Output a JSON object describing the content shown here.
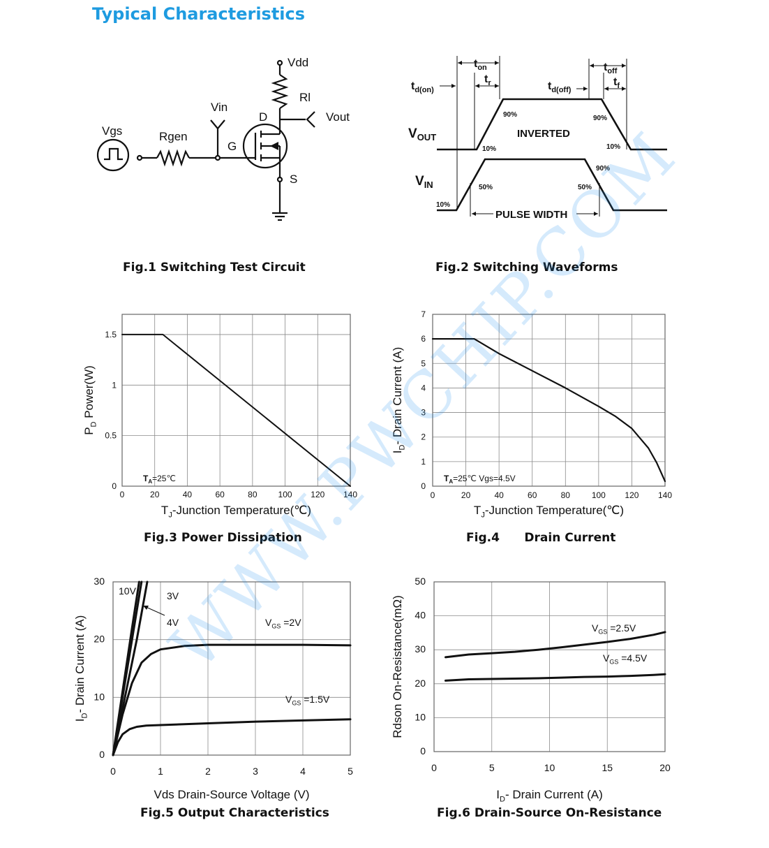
{
  "page": {
    "title": "Typical Characteristics",
    "watermark": "WWW.PWCHIP.COM"
  },
  "figures": {
    "fig1": {
      "caption": "Fig.1 Switching Test Circuit",
      "labels": {
        "vdd": "Vdd",
        "rl": "Rl",
        "vin": "Vin",
        "vout": "Vout",
        "vgs": "Vgs",
        "rgen": "Rgen",
        "d": "D",
        "g": "G",
        "s": "S"
      }
    },
    "fig2": {
      "caption": "Fig.2 Switching Waveforms",
      "labels": {
        "ton": "t",
        "ton_sub": "on",
        "tr": "t",
        "tr_sub": "r",
        "tdon": "t",
        "tdon_sub": "d(on)",
        "tdoff": "t",
        "tdoff_sub": "d(off)",
        "toff": "t",
        "toff_sub": "off",
        "tf": "t",
        "tf_sub": "f",
        "vout": "V",
        "vout_sub": "OUT",
        "vin": "V",
        "vin_sub": "IN",
        "inverted": "INVERTED",
        "pulse_width": "PULSE WIDTH",
        "p90a": "90%",
        "p90b": "90%",
        "p10a": "10%",
        "p10b": "10%",
        "p90c": "90%",
        "p50a": "50%",
        "p50b": "50%",
        "p10c": "10%"
      }
    },
    "fig3": {
      "caption": "Fig.3 Power Dissipation"
    },
    "fig4": {
      "caption": "Fig.4      Drain Current"
    },
    "fig5": {
      "caption": "Fig.5 Output Characteristics"
    },
    "fig6": {
      "caption": "Fig.6 Drain-Source On-Resistance"
    }
  },
  "chart_data": [
    {
      "type": "line",
      "x": [
        0,
        25,
        140
      ],
      "series": [
        {
          "name": "",
          "values": [
            1.5,
            1.5,
            0.0
          ]
        }
      ],
      "xlabel": "TJ-Junction Temperature(℃)",
      "ylabel": "PD  Power(W)",
      "x_ticks": [
        "0",
        "20",
        "40",
        "60",
        "80",
        "100",
        "120",
        "140"
      ],
      "y_ticks": [
        "0",
        "0.5",
        "1",
        "1.5"
      ],
      "xlim": [
        0,
        140
      ],
      "ylim": [
        0,
        1.7
      ],
      "grid": true,
      "annotation": "TA=25℃"
    },
    {
      "type": "line",
      "x": [
        0,
        25,
        40,
        60,
        80,
        100,
        110,
        120,
        130,
        135,
        140
      ],
      "series": [
        {
          "name": "",
          "values": [
            6.0,
            6.0,
            5.4,
            4.7,
            4.0,
            3.25,
            2.85,
            2.35,
            1.55,
            0.95,
            0.2
          ]
        }
      ],
      "xlabel": "TJ-Junction Temperature(℃)",
      "ylabel": "ID- Drain Current (A)",
      "x_ticks": [
        "0",
        "20",
        "40",
        "60",
        "80",
        "100",
        "120",
        "140"
      ],
      "y_ticks": [
        "0",
        "1",
        "2",
        "3",
        "4",
        "5",
        "6",
        "7"
      ],
      "xlim": [
        0,
        140
      ],
      "ylim": [
        0,
        7
      ],
      "grid": true,
      "annotation": "TA=25℃  Vgs=4.5V"
    },
    {
      "type": "line",
      "xlabel": "Vds Drain-Source Voltage (V)",
      "ylabel": "ID- Drain Current (A)",
      "x_ticks": [
        "0",
        "1",
        "2",
        "3",
        "4",
        "5"
      ],
      "y_ticks": [
        "0",
        "10",
        "20",
        "30"
      ],
      "xlim": [
        0,
        5
      ],
      "ylim": [
        0,
        30
      ],
      "grid": true,
      "series": [
        {
          "name": "10V",
          "x": [
            0,
            0.2,
            0.4,
            0.55
          ],
          "values": [
            0,
            11,
            22,
            30
          ]
        },
        {
          "name": "4V",
          "x": [
            0,
            0.2,
            0.4,
            0.6
          ],
          "values": [
            0,
            10,
            20,
            30
          ]
        },
        {
          "name": "3V",
          "x": [
            0,
            0.25,
            0.5,
            0.72
          ],
          "values": [
            0,
            10,
            20,
            30
          ]
        },
        {
          "name": "VGS =2V",
          "x": [
            0,
            0.2,
            0.4,
            0.6,
            0.8,
            1.0,
            1.5,
            2.0,
            3.0,
            4.0,
            5.0
          ],
          "values": [
            0,
            7,
            12.5,
            16,
            17.5,
            18.3,
            18.9,
            19.1,
            19.1,
            19.1,
            19.0
          ]
        },
        {
          "name": "VGS =1.5V",
          "x": [
            0,
            0.1,
            0.2,
            0.35,
            0.5,
            0.7,
            1.0,
            2.0,
            3.0,
            4.0,
            5.0
          ],
          "values": [
            0,
            2.2,
            3.6,
            4.5,
            4.9,
            5.1,
            5.2,
            5.5,
            5.8,
            6.0,
            6.2
          ]
        }
      ],
      "labels": {
        "l10v": "10V",
        "l3v": "3V",
        "l4v": "4V",
        "vgs2": "V",
        "vgs2_sub": "GS",
        "vgs2_val": " =2V",
        "vgs15": "V",
        "vgs15_sub": "GS",
        "vgs15_val": " =1.5V"
      }
    },
    {
      "type": "line",
      "xlabel": "ID- Drain Current (A)",
      "ylabel": "Rdson On-Resistance(mΩ)",
      "x_ticks": [
        "0",
        "5",
        "10",
        "15",
        "20"
      ],
      "y_ticks": [
        "0",
        "10",
        "20",
        "30",
        "40",
        "50"
      ],
      "xlim": [
        0,
        20
      ],
      "ylim": [
        0,
        50
      ],
      "grid": true,
      "series": [
        {
          "name": "VGS =2.5V",
          "x": [
            1,
            3,
            5,
            7,
            9,
            11,
            13,
            15,
            17,
            19,
            20
          ],
          "values": [
            27.8,
            28.6,
            29.0,
            29.4,
            30.0,
            30.7,
            31.5,
            32.3,
            33.2,
            34.4,
            35.2
          ]
        },
        {
          "name": "VGS =4.5V",
          "x": [
            1,
            3,
            5,
            7,
            9,
            11,
            13,
            15,
            17,
            19,
            20
          ],
          "values": [
            20.9,
            21.3,
            21.4,
            21.5,
            21.6,
            21.8,
            22.0,
            22.1,
            22.3,
            22.6,
            22.8
          ]
        }
      ],
      "labels": {
        "vgs25": "V",
        "vgs25_sub": "GS",
        "vgs25_val": " =2.5V",
        "vgs45": "V",
        "vgs45_sub": "GS",
        "vgs45_val": " =4.5V"
      }
    }
  ]
}
